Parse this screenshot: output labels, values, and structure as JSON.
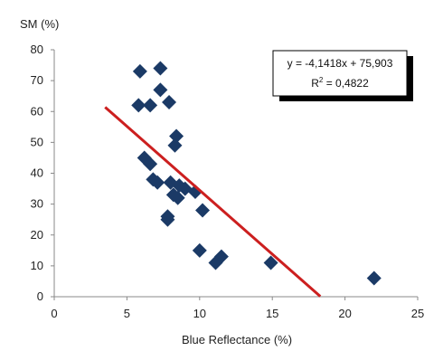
{
  "chart_data": {
    "type": "scatter",
    "xlabel": "Blue Reflectance (%)",
    "ylabel": "SM (%)",
    "xlim": [
      0,
      25
    ],
    "ylim": [
      0,
      80
    ],
    "xticks": [
      "0",
      "5",
      "10",
      "15",
      "20",
      "25"
    ],
    "yticks": [
      "0",
      "10",
      "20",
      "30",
      "40",
      "50",
      "60",
      "70",
      "80"
    ],
    "grid": false,
    "points": [
      {
        "x": 5.9,
        "y": 73
      },
      {
        "x": 7.3,
        "y": 74
      },
      {
        "x": 7.3,
        "y": 67
      },
      {
        "x": 5.8,
        "y": 62
      },
      {
        "x": 6.6,
        "y": 62
      },
      {
        "x": 7.9,
        "y": 63
      },
      {
        "x": 8.4,
        "y": 52
      },
      {
        "x": 8.3,
        "y": 49
      },
      {
        "x": 6.2,
        "y": 45
      },
      {
        "x": 6.6,
        "y": 43
      },
      {
        "x": 6.8,
        "y": 38
      },
      {
        "x": 7.1,
        "y": 37
      },
      {
        "x": 8.0,
        "y": 37
      },
      {
        "x": 8.6,
        "y": 36
      },
      {
        "x": 9.0,
        "y": 35
      },
      {
        "x": 9.7,
        "y": 34
      },
      {
        "x": 8.2,
        "y": 33
      },
      {
        "x": 8.5,
        "y": 32
      },
      {
        "x": 10.2,
        "y": 28
      },
      {
        "x": 7.8,
        "y": 26
      },
      {
        "x": 7.8,
        "y": 25
      },
      {
        "x": 10.0,
        "y": 15
      },
      {
        "x": 11.5,
        "y": 13
      },
      {
        "x": 11.1,
        "y": 11
      },
      {
        "x": 14.9,
        "y": 11
      },
      {
        "x": 22.0,
        "y": 6
      }
    ],
    "trendline": {
      "x_start": 3.5,
      "x_end": 18.3,
      "slope": -4.1418,
      "intercept": 75.903
    },
    "colors": {
      "marker": "#1b3a66",
      "trendline": "#cc1f1f",
      "axis": "#888888"
    },
    "equation_lines": [
      "y = -4,1418x + 75,903",
      "R",
      "2",
      " = 0,4822"
    ]
  }
}
